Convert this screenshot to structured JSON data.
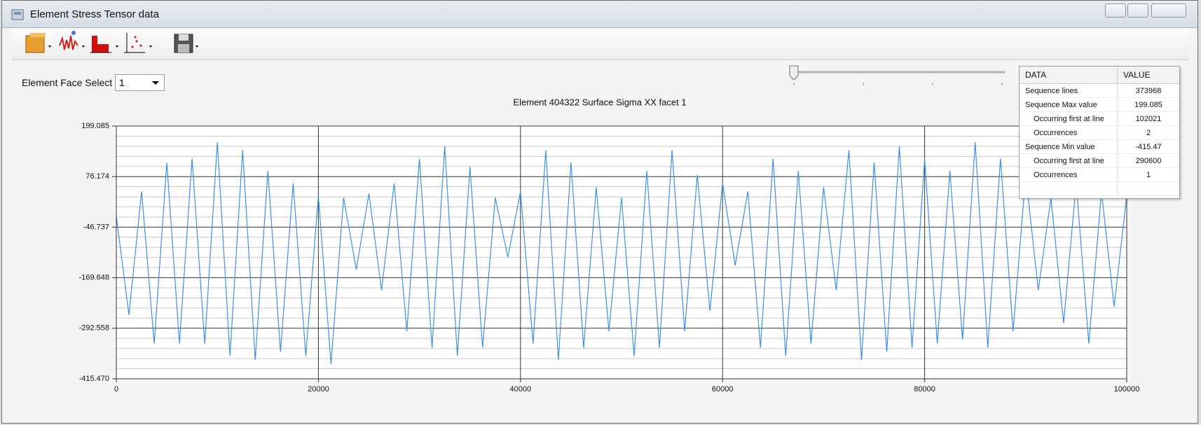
{
  "window": {
    "title": "Element Stress Tensor data"
  },
  "controls": {
    "face_select_label": "Element Face Select",
    "face_select_value": "1"
  },
  "chart_data": {
    "type": "line",
    "title": "Element 404322 Surface Sigma XX facet 1",
    "x": [
      0,
      1250,
      2500,
      3750,
      5000,
      6250,
      7500,
      8750,
      10000,
      11250,
      12500,
      13750,
      15000,
      16250,
      17500,
      18750,
      20000,
      21250,
      22500,
      23750,
      25000,
      26250,
      27500,
      28750,
      30000,
      31250,
      32500,
      33750,
      35000,
      36250,
      37500,
      38750,
      40000,
      41250,
      42500,
      43750,
      45000,
      46250,
      47500,
      48750,
      50000,
      51250,
      52500,
      53750,
      55000,
      56250,
      57500,
      58750,
      60000,
      61250,
      62500,
      63750,
      65000,
      66250,
      67500,
      68750,
      70000,
      71250,
      72500,
      73750,
      75000,
      76250,
      77500,
      78750,
      80000,
      81250,
      82500,
      83750,
      85000,
      86250,
      87500,
      88750,
      90000,
      91250,
      92500,
      93750,
      95000,
      96250,
      97500,
      98750,
      100000
    ],
    "series": [
      {
        "color": "#3f8fe6",
        "values": [
          -20,
          -260,
          40,
          -330,
          110,
          -330,
          120,
          -330,
          160,
          -360,
          140,
          -370,
          90,
          -350,
          60,
          -360,
          30,
          -380,
          25,
          -150,
          35,
          -200,
          60,
          -300,
          120,
          -340,
          150,
          -360,
          100,
          -340,
          25,
          -120,
          40,
          -330,
          140,
          -370,
          110,
          -340,
          50,
          -300,
          25,
          -360,
          90,
          -340,
          140,
          -300,
          80,
          -250,
          60,
          -140,
          40,
          -340,
          120,
          -360,
          90,
          -330,
          50,
          -200,
          140,
          -370,
          110,
          -350,
          150,
          -340,
          120,
          -330,
          90,
          -320,
          160,
          -340,
          120,
          -300,
          80,
          -200,
          25,
          -280,
          60,
          -330,
          40,
          -240,
          30
        ]
      }
    ],
    "xlim": [
      0,
      100000
    ],
    "xticks": [
      0,
      20000,
      40000,
      60000,
      80000,
      100000
    ],
    "ylim": [
      -415.47,
      199.085
    ],
    "yticks": [
      {
        "value": -415.47,
        "label": "-415.470"
      },
      -292.558,
      -169.648,
      -46.737,
      76.174,
      199.085
    ],
    "grid": true
  },
  "stats_table": {
    "headers": [
      "DATA",
      "VALUE"
    ],
    "rows": [
      [
        "Sequence lines",
        373968
      ],
      [
        "Sequence Max value",
        199.085
      ],
      [
        "Occurring first at line",
        102021
      ],
      [
        "Occurrences",
        2
      ],
      [
        "Sequence Min value",
        -415.47
      ],
      [
        "Occurring first at line",
        290600
      ],
      [
        "Occurrences",
        1
      ]
    ]
  }
}
